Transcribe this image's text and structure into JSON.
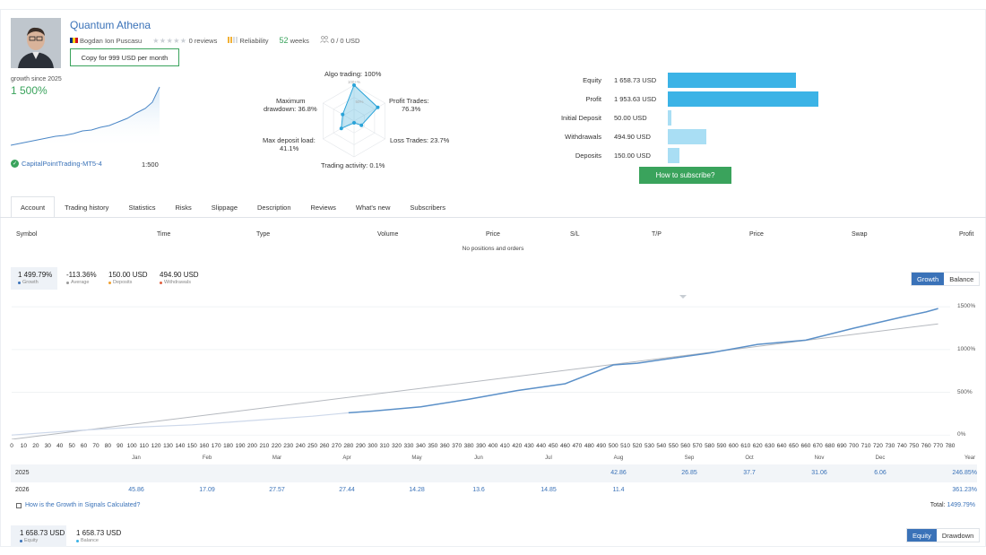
{
  "signal": {
    "title": "Quantum Athena",
    "author": "Bogdan Ion Puscasu",
    "reviews": "0 reviews",
    "reliability": "Reliability",
    "weeks_num": "52",
    "weeks_label": "weeks",
    "subscribers": "0 / 0 USD",
    "copy_button": "Copy for 999 USD per month",
    "growth_label": "growth since 2025",
    "growth_value": "1 500%",
    "broker": "CapitalPointTrading-MT5-4",
    "leverage": "1:500"
  },
  "radar": {
    "algo": "Algo trading: 100%",
    "inner_top": "100+%",
    "inner_mid": "50%",
    "profit_trades": "Profit Trades:",
    "profit_trades_v": "76.3%",
    "loss_trades": "Loss Trades: 23.7%",
    "activity": "Trading activity: 0.1%",
    "deposit_load": "Max deposit load:",
    "deposit_load_v": "41.1%",
    "drawdown": "Maximum",
    "drawdown_v": "drawdown: 36.8%",
    "values": [
      1.0,
      0.763,
      0.237,
      0.05,
      0.411,
      0.368
    ]
  },
  "account_stats": [
    {
      "label": "Equity",
      "value": "1 658.73 USD",
      "amount": 1658.73,
      "color": "#3bb3e6"
    },
    {
      "label": "Profit",
      "value": "1 953.63 USD",
      "amount": 1953.63,
      "color": "#3bb3e6"
    },
    {
      "label": "Initial Deposit",
      "value": "50.00 USD",
      "amount": 50.0,
      "color": "#a9def4"
    },
    {
      "label": "Withdrawals",
      "value": "494.90 USD",
      "amount": 494.9,
      "color": "#a9def4"
    },
    {
      "label": "Deposits",
      "value": "150.00 USD",
      "amount": 150.0,
      "color": "#a9def4"
    }
  ],
  "subscribe_button": "How to subscribe?",
  "tabs": [
    "Account",
    "Trading history",
    "Statistics",
    "Risks",
    "Slippage",
    "Description",
    "Reviews",
    "What's new",
    "Subscribers"
  ],
  "positions": {
    "headers": [
      "Symbol",
      "Time",
      "Type",
      "Volume",
      "Price",
      "S/L",
      "T/P",
      "Price",
      "Swap",
      "Profit"
    ],
    "empty": "No positions and orders"
  },
  "summary": [
    {
      "value": "1 499.79%",
      "label": "Growth",
      "color": "#3a72b8"
    },
    {
      "value": "-113.36%",
      "label": "Average",
      "color": "#999999"
    },
    {
      "value": "150.00 USD",
      "label": "Deposits",
      "color": "#f0a030"
    },
    {
      "value": "494.90 USD",
      "label": "Withdrawals",
      "color": "#e06040"
    }
  ],
  "growth_toggle": [
    "Growth",
    "Balance"
  ],
  "chart_data": {
    "type": "line",
    "y_ticks": [
      "1500%",
      "1000%",
      "500%",
      "0%"
    ],
    "x_ticks": [
      "0",
      "10",
      "20",
      "30",
      "40",
      "50",
      "60",
      "70",
      "80",
      "90",
      "100",
      "110",
      "120",
      "130",
      "140",
      "150",
      "160",
      "170",
      "180",
      "190",
      "200",
      "210",
      "220",
      "230",
      "240",
      "250",
      "260",
      "270",
      "280",
      "290",
      "300",
      "310",
      "320",
      "330",
      "340",
      "350",
      "360",
      "370",
      "380",
      "390",
      "400",
      "410",
      "420",
      "430",
      "440",
      "450",
      "460",
      "470",
      "480",
      "490",
      "500",
      "510",
      "520",
      "530",
      "540",
      "550",
      "560",
      "570",
      "580",
      "590",
      "600",
      "610",
      "620",
      "630",
      "640",
      "650",
      "660",
      "670",
      "680",
      "690",
      "700",
      "710",
      "720",
      "730",
      "740",
      "750",
      "760",
      "770",
      "780"
    ],
    "xlim": [
      0,
      780
    ],
    "ylim": [
      -50,
      1680
    ],
    "series": [
      {
        "x": [
          0,
          50,
          100,
          150,
          200,
          250,
          280,
          300,
          340,
          380,
          420,
          460,
          500,
          520,
          540,
          580,
          620,
          660,
          700,
          740,
          760,
          770
        ],
        "y": [
          0,
          50,
          90,
          120,
          170,
          220,
          260,
          280,
          330,
          420,
          520,
          600,
          820,
          840,
          880,
          960,
          1060,
          1110,
          1250,
          1380,
          1440,
          1480
        ]
      },
      {
        "x": [
          0,
          770
        ],
        "y": [
          -50,
          1300
        ]
      }
    ]
  },
  "monthly": {
    "months": [
      "Jan",
      "Feb",
      "Mar",
      "Apr",
      "May",
      "Jun",
      "Jul",
      "Aug",
      "Sep",
      "Oct",
      "Nov",
      "Dec",
      "Year"
    ],
    "rows": [
      {
        "year": "2025",
        "cells": [
          "",
          "",
          "",
          "",
          "",
          "",
          "",
          "42.86",
          "26.85",
          "37.7",
          "31.06",
          "6.06"
        ],
        "total": "246.85%"
      },
      {
        "year": "2026",
        "cells": [
          "45.86",
          "17.09",
          "27.57",
          "27.44",
          "14.28",
          "13.6",
          "14.85",
          "11.4",
          "",
          "",
          "",
          ""
        ],
        "total": "361.23%"
      }
    ],
    "how_link": "How is the Growth in Signals Calculated?",
    "total_label": "Total:",
    "total_value": "1499.79%"
  },
  "equity_summary": [
    {
      "value": "1 658.73 USD",
      "label": "Equity",
      "color": "#3a72b8"
    },
    {
      "value": "1 658.73 USD",
      "label": "Balance",
      "color": "#3bb3e6"
    }
  ],
  "equity_toggle": [
    "Equity",
    "Drawdown"
  ]
}
